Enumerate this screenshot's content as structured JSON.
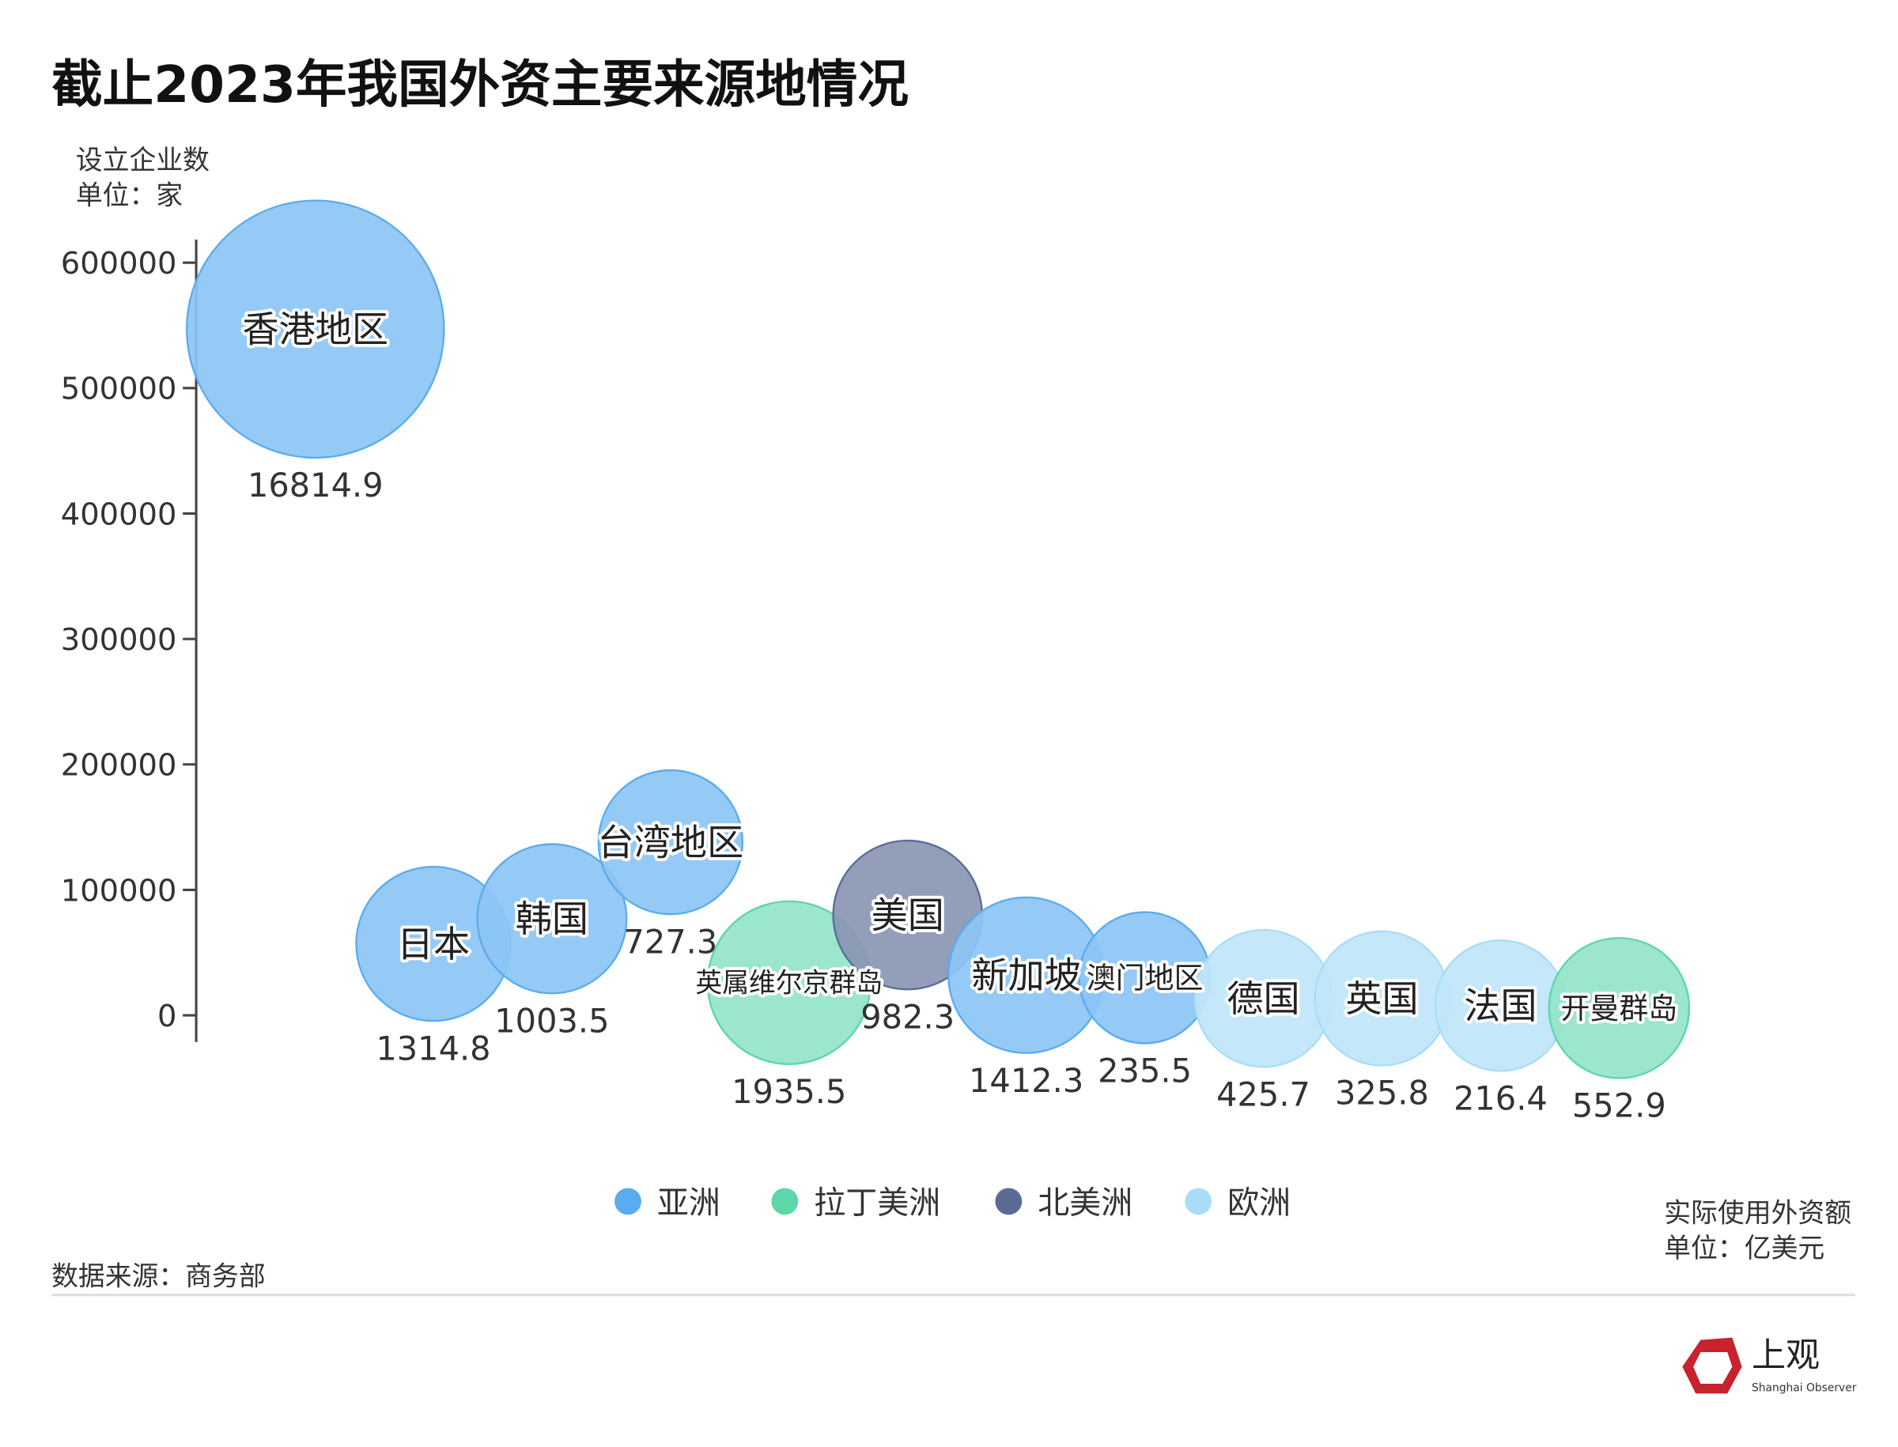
{
  "title": "截止2023年我国外资主要来源地情况",
  "source": "数据来源：商务部",
  "logo": {
    "text": "上观",
    "subtext": "Shanghai Observer",
    "color": "#c8222c"
  },
  "chart_data": {
    "type": "bubble",
    "title": "截止2023年我国外资主要来源地情况",
    "ylabel": [
      "设立企业数",
      "单位：家"
    ],
    "size_label": [
      "实际使用外资额",
      "单位：亿美元"
    ],
    "ylim": [
      0,
      600000
    ],
    "yticks": [
      "0",
      "100000",
      "200000",
      "300000",
      "400000",
      "500000",
      "600000"
    ],
    "grid": false,
    "legend_position": "bottom",
    "groups": [
      {
        "name": "亚洲",
        "color": "#5aabef"
      },
      {
        "name": "拉丁美洲",
        "color": "#5dd6a8"
      },
      {
        "name": "北美洲",
        "color": "#5a6b96"
      },
      {
        "name": "欧洲",
        "color": "#a9dcf7"
      }
    ],
    "points": [
      {
        "name": "香港地区",
        "group": 0,
        "y": 547000,
        "size": 16814.9,
        "size_label": "16814.9"
      },
      {
        "name": "日本",
        "group": 0,
        "y": 57000,
        "size": 1314.8,
        "size_label": "1314.8"
      },
      {
        "name": "韩国",
        "group": 0,
        "y": 77000,
        "size": 1003.5,
        "size_label": "1003.5"
      },
      {
        "name": "台湾地区",
        "group": 0,
        "y": 138000,
        "size": 727.3,
        "size_label": "727.3"
      },
      {
        "name": "英属维尔京群岛",
        "group": 1,
        "y": 26000,
        "size": 1935.5,
        "size_label": "1935.5"
      },
      {
        "name": "美国",
        "group": 2,
        "y": 80000,
        "size": 982.3,
        "size_label": "982.3"
      },
      {
        "name": "新加坡",
        "group": 0,
        "y": 32000,
        "size": 1412.3,
        "size_label": "1412.3"
      },
      {
        "name": "澳门地区",
        "group": 0,
        "y": 30000,
        "size": 235.5,
        "size_label": "235.5"
      },
      {
        "name": "德国",
        "group": 3,
        "y": 13500,
        "size": 425.7,
        "size_label": "425.7"
      },
      {
        "name": "英国",
        "group": 3,
        "y": 13500,
        "size": 325.8,
        "size_label": "325.8"
      },
      {
        "name": "法国",
        "group": 3,
        "y": 7700,
        "size": 216.4,
        "size_label": "216.4"
      },
      {
        "name": "开曼群岛",
        "group": 1,
        "y": 5800,
        "size": 552.9,
        "size_label": "552.9"
      }
    ]
  }
}
